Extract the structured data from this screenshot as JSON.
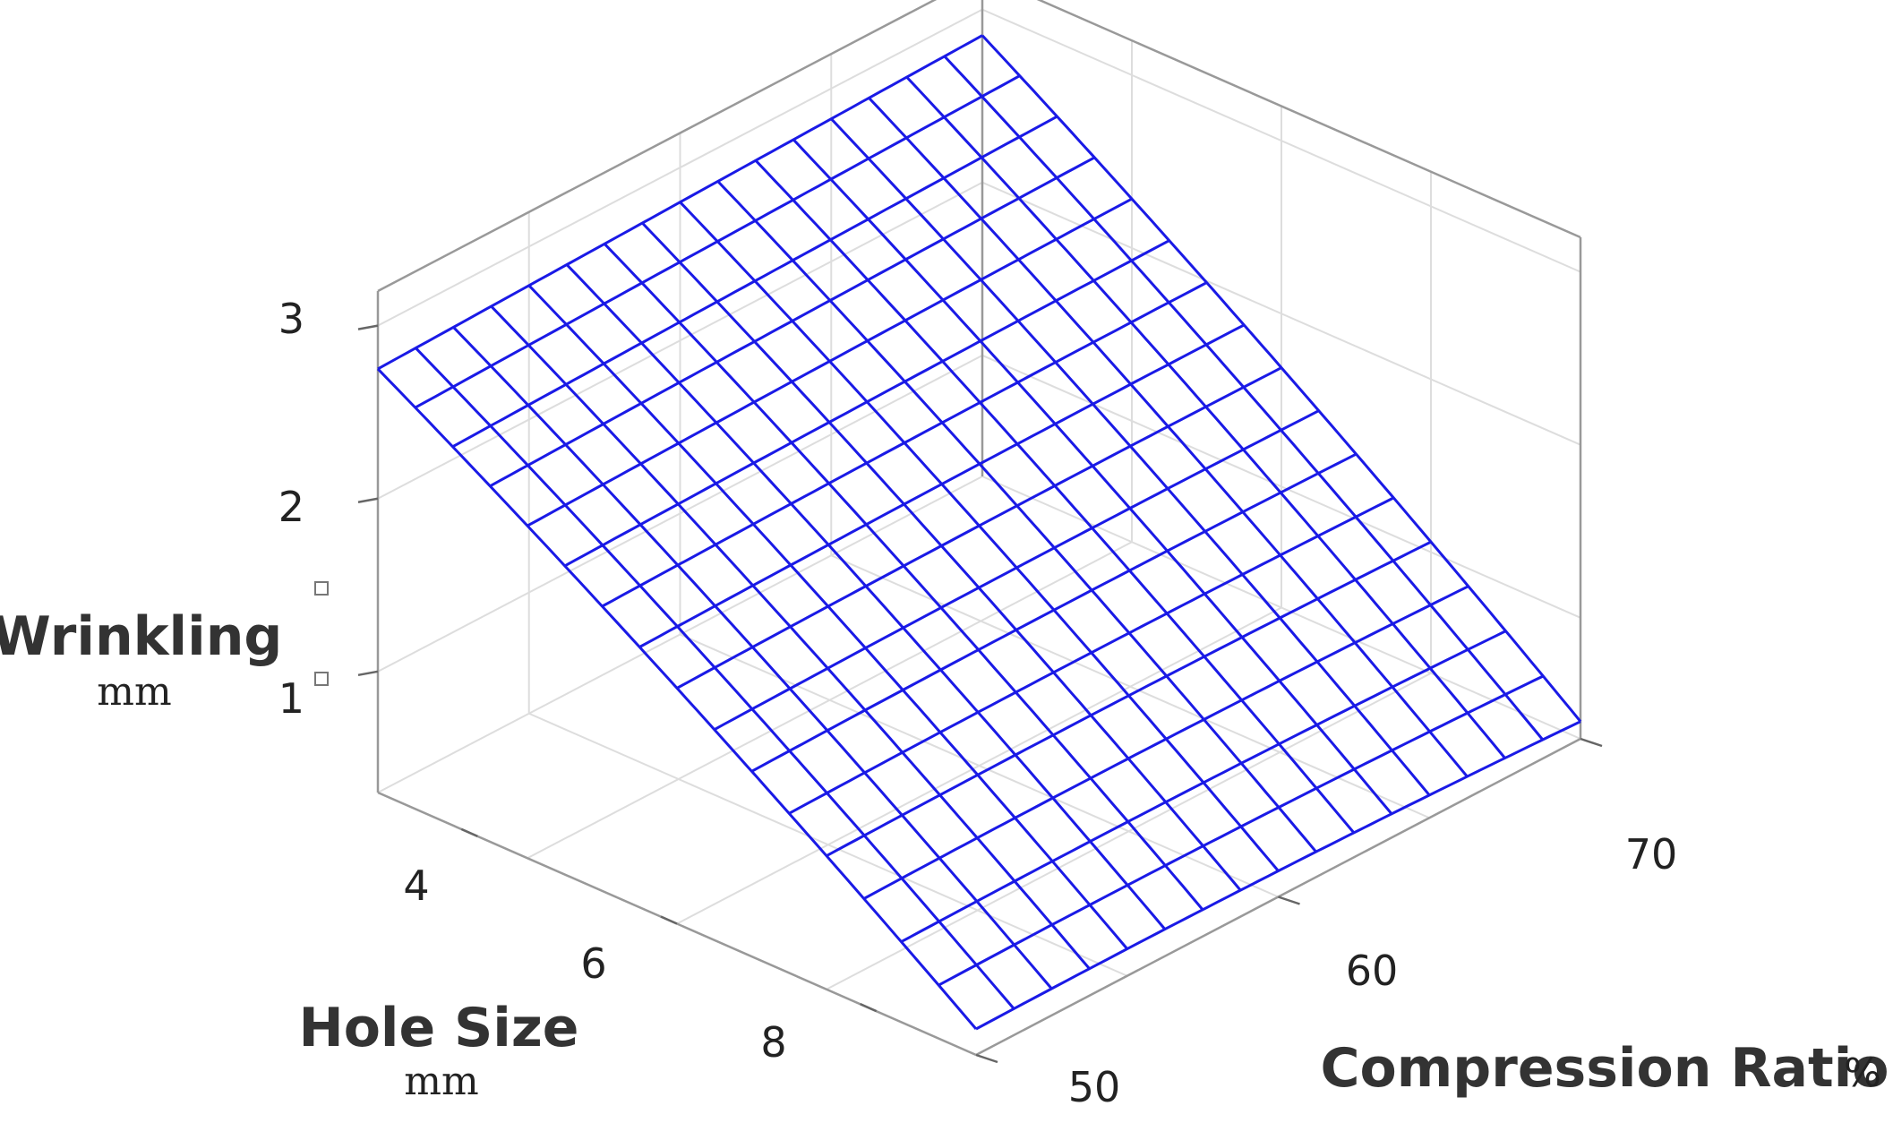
{
  "chart_data": {
    "type": "surface",
    "x_axis": {
      "title": "Compression Ratio",
      "unit": "%",
      "range": [
        50,
        70
      ],
      "ticks": [
        50,
        60,
        70
      ]
    },
    "y_axis": {
      "title": "Hole Size",
      "unit": "mm",
      "range": [
        3,
        9
      ],
      "ticks": [
        4,
        6,
        8
      ]
    },
    "z_axis": {
      "title": "Wrinkling",
      "unit": "mm",
      "range": [
        0.3,
        3.2
      ],
      "ticks": [
        1,
        2,
        3
      ]
    },
    "surface": {
      "grid_size": 16,
      "corners": {
        "cr50_hole3": 2.75,
        "cr70_hole3": 2.85,
        "cr50_hole9": 0.45,
        "cr70_hole9": 0.4
      },
      "color": "#1a1ae6"
    },
    "grid": true
  }
}
